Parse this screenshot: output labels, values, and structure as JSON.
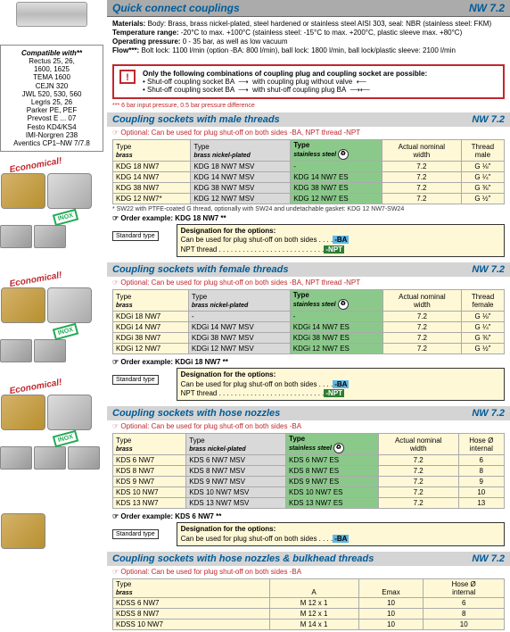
{
  "header": {
    "title": "Quick connect couplings",
    "code": "NW 7.2"
  },
  "materials_block": {
    "materials_label": "Materials:",
    "materials_text": "Body: Brass, brass nickel-plated, steel hardened or stainless steel AISI 303, seal: NBR (stainless steel: FKM)",
    "temp_label": "Temperature range:",
    "temp_text": "-20°C to max. +100°C (stainless steel: -15°C to max. +200°C, plastic sleeve max. +80°C)",
    "pressure_label": "Operating pressure:",
    "pressure_text": "0 - 35 bar, as well as low vacuum",
    "flow_label": "Flow***:",
    "flow_text": "Bolt lock: 1100 l/min (option -BA: 800 l/min), ball lock: 1800 l/min, ball lock/plastic sleeve: 2100 l/min"
  },
  "warning": {
    "title": "Only the following combinations of coupling plug and coupling socket are possible:",
    "l1a": "• Shut-off coupling socket BA",
    "l1b": "with coupling plug without valve",
    "l2a": "• Shut-off coupling socket BA",
    "l2b": "with shut-off coupling plug BA"
  },
  "flow_note": "*** 6 bar input pressure, 0.5 bar pressure difference",
  "compat": {
    "hdr": "Compatible with**",
    "l1": "Rectus 25, 26,",
    "l2": "1600, 1625",
    "l3": "TEMA 1600",
    "l4": "CEJN 320",
    "l5": "JWL 520, 530, 560",
    "l6": "Legris 25, 26",
    "l7": "Parker PE, PEF",
    "l8": "Prevost E ... 07",
    "l9": "Festo KD4/KS4",
    "l10": "IMI-Norgren 238",
    "l11": "Aventics CP1–NW 7/7.8"
  },
  "economical": "Economical!",
  "inox": "INOX",
  "sections": {
    "male": {
      "title": "Coupling sockets with male threads",
      "code": "NW 7.2",
      "optional": "☞ Optional: Can be used for plug shut-off on both sides -BA, NPT thread -NPT",
      "col_type": "Type",
      "col_brass": "brass",
      "col_nickel": "brass nickel-plated",
      "col_steel": "stainless steel",
      "col_width_l1": "Actual nominal",
      "col_width_l2": "width",
      "col_thread_l1": "Thread",
      "col_thread_l2": "male",
      "rows": [
        {
          "b": "KDG 18 NW7",
          "n": "KDG 18 NW7 MSV",
          "s": "-",
          "w": "7.2",
          "t": "G ⅛\""
        },
        {
          "b": "KDG 14 NW7",
          "n": "KDG 14 NW7 MSV",
          "s": "KDG 14 NW7 ES",
          "w": "7.2",
          "t": "G ¼\""
        },
        {
          "b": "KDG 38 NW7",
          "n": "KDG 38 NW7 MSV",
          "s": "KDG 38 NW7 ES",
          "w": "7.2",
          "t": "G ⅜\""
        },
        {
          "b": "KDG 12 NW7*",
          "n": "KDG 12 NW7 MSV",
          "s": "KDG 12 NW7 ES",
          "w": "7.2",
          "t": "G ½\""
        }
      ],
      "note": "* SW22 with PTFE-coated G thread, optionally with SW24 and undetachable gasket: KDG 12 NW7-SW24",
      "order": "☞ Order example: KDG 18 NW7   **",
      "std": "Standard type",
      "desig_h": "Designation for the options:",
      "desig_l1": "Can be used for plug shut-off on both sides . . . .",
      "desig_ba": "-BA",
      "desig_l2": "NPT thread  . . . . . . . . . . . . . . . . . . . . . . . . . . .",
      "desig_npt": "-NPT"
    },
    "female": {
      "title": "Coupling sockets with female threads",
      "code": "NW 7.2",
      "optional": "☞ Optional: Can be used for plug shut-off on both sides -BA, NPT thread -NPT",
      "col_thread_l2": "female",
      "rows": [
        {
          "b": "KDGi 18 NW7",
          "n": "-",
          "s": "-",
          "w": "7.2",
          "t": "G ⅛\""
        },
        {
          "b": "KDGi 14 NW7",
          "n": "KDGi 14 NW7 MSV",
          "s": "KDGi 14 NW7 ES",
          "w": "7.2",
          "t": "G ¼\""
        },
        {
          "b": "KDGi 38 NW7",
          "n": "KDGi 38 NW7 MSV",
          "s": "KDGi 38 NW7 ES",
          "w": "7.2",
          "t": "G ⅜\""
        },
        {
          "b": "KDGi 12 NW7",
          "n": "KDGi 12 NW7 MSV",
          "s": "KDGi 12 NW7 ES",
          "w": "7.2",
          "t": "G ½\""
        }
      ],
      "order": "☞ Order example: KDGi 18 NW7   **"
    },
    "hose": {
      "title": "Coupling sockets with hose nozzles",
      "code": "NW 7.2",
      "optional": "☞ Optional: Can be used for plug shut-off on both sides -BA",
      "col_hose_l1": "Hose Ø",
      "col_hose_l2": "internal",
      "rows": [
        {
          "b": "KDS 6 NW7",
          "n": "KDS 6 NW7 MSV",
          "s": "KDS 6 NW7 ES",
          "w": "7.2",
          "t": "6"
        },
        {
          "b": "KDS 8 NW7",
          "n": "KDS 8 NW7 MSV",
          "s": "KDS 8 NW7 ES",
          "w": "7.2",
          "t": "8"
        },
        {
          "b": "KDS 9 NW7",
          "n": "KDS 9 NW7 MSV",
          "s": "KDS 9 NW7 ES",
          "w": "7.2",
          "t": "9"
        },
        {
          "b": "KDS 10 NW7",
          "n": "KDS 10 NW7 MSV",
          "s": "KDS 10 NW7 ES",
          "w": "7.2",
          "t": "10"
        },
        {
          "b": "KDS 13 NW7",
          "n": "KDS 13 NW7 MSV",
          "s": "KDS 13 NW7 ES",
          "w": "7.2",
          "t": "13"
        }
      ],
      "order": "☞ Order example: KDS 6 NW7   **",
      "desig_h": "Designation for the options:",
      "desig_l1": "Can be used for plug shut-off on both sides . . . .",
      "desig_ba": "-BA"
    },
    "bulk": {
      "title": "Coupling sockets with hose nozzles & bulkhead threads",
      "code": "NW 7.2",
      "optional": "☞ Optional: Can be used for plug shut-off on both sides -BA",
      "col_a": "A",
      "col_emax": "Emax",
      "rows": [
        {
          "b": "KDSS 6 NW7",
          "a": "M 12 x 1",
          "e": "10",
          "h": "6"
        },
        {
          "b": "KDSS 8 NW7",
          "a": "M 12 x 1",
          "e": "10",
          "h": "8"
        },
        {
          "b": "KDSS 10 NW7",
          "a": "M 14 x 1",
          "e": "10",
          "h": "10"
        }
      ]
    }
  }
}
